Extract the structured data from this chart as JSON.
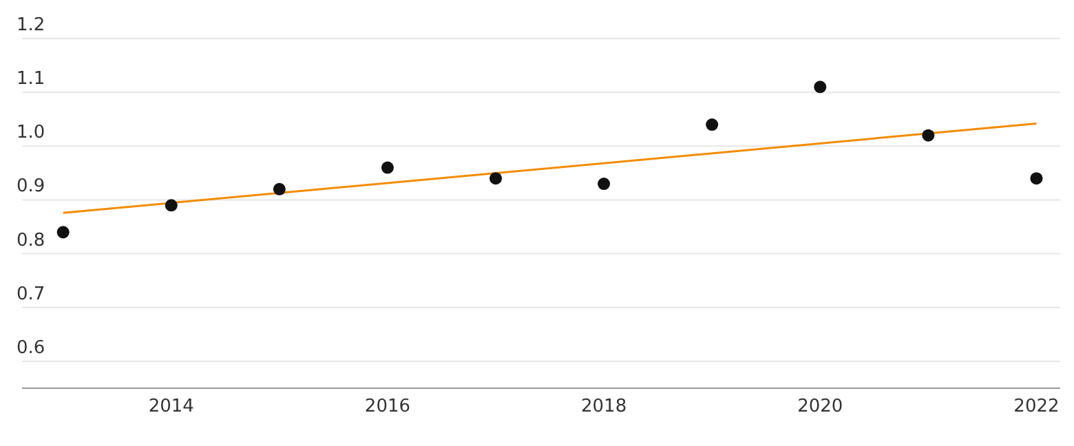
{
  "chart_data": {
    "type": "scatter",
    "x": [
      2013,
      2014,
      2015,
      2016,
      2017,
      2018,
      2019,
      2020,
      2021,
      2022
    ],
    "series": [
      {
        "color": "#111111",
        "marker": "circle",
        "values": [
          0.84,
          0.89,
          0.92,
          0.96,
          0.94,
          0.93,
          1.04,
          1.11,
          1.02,
          0.94
        ]
      },
      {
        "type": "line",
        "color": "#f28c00",
        "x": [
          2013,
          2022
        ],
        "values": [
          0.876,
          1.042
        ]
      }
    ],
    "xlim": [
      2012.62,
      2022.22
    ],
    "xticks": [
      2014,
      2016,
      2018,
      2020,
      2022
    ],
    "ylim": [
      0.55,
      1.2
    ],
    "yticks": [
      0.6,
      0.7,
      0.8,
      0.9,
      {
        "value": 1,
        "label": "1.0"
      },
      1.1,
      1.2
    ],
    "grid": "y"
  }
}
